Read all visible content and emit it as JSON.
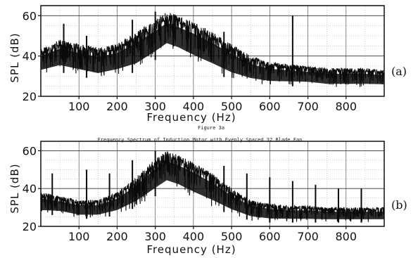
{
  "figure_caption": "Figure 3a",
  "figure_subcaption": "Frequency Spectrum of Induction Motor with Evenly Spaced 32 Blade Fan",
  "chart_data": [
    {
      "type": "line",
      "panel_label": "(a)",
      "xlabel": "Frequency (Hz)",
      "ylabel": "SPL (dB)",
      "xlim": [
        0,
        900
      ],
      "ylim": [
        20,
        65
      ],
      "x_ticks": [
        "100",
        "200",
        "300",
        "400",
        "500",
        "600",
        "700",
        "800"
      ],
      "y_ticks": [
        "20",
        "40",
        "60"
      ],
      "grid": true,
      "color": "#0a0a0a",
      "envelope": {
        "x": [
          0,
          50,
          100,
          150,
          200,
          250,
          300,
          330,
          360,
          400,
          450,
          500,
          550,
          600,
          650,
          700,
          750,
          800,
          850,
          900
        ],
        "upper": [
          44,
          48,
          46,
          44,
          46,
          52,
          58,
          62,
          60,
          57,
          52,
          46,
          40,
          37,
          36,
          35,
          34,
          34,
          34,
          33
        ],
        "lower": [
          30,
          32,
          30,
          28,
          30,
          32,
          38,
          42,
          40,
          36,
          32,
          28,
          26,
          25,
          25,
          25,
          24,
          24,
          24,
          24
        ]
      },
      "peaks": [
        {
          "x": 60,
          "y": 56
        },
        {
          "x": 120,
          "y": 50
        },
        {
          "x": 240,
          "y": 58
        },
        {
          "x": 300,
          "y": 62
        },
        {
          "x": 480,
          "y": 52
        },
        {
          "x": 660,
          "y": 60
        }
      ]
    },
    {
      "type": "line",
      "panel_label": "(b)",
      "xlabel": "Frequency (Hz)",
      "ylabel": "SPL (dB)",
      "xlim": [
        0,
        900
      ],
      "ylim": [
        20,
        65
      ],
      "x_ticks": [
        "100",
        "200",
        "300",
        "400",
        "500",
        "600",
        "700",
        "800"
      ],
      "y_ticks": [
        "20",
        "40",
        "60"
      ],
      "grid": true,
      "color": "#0a0a0a",
      "envelope": {
        "x": [
          0,
          50,
          100,
          150,
          200,
          250,
          300,
          330,
          360,
          400,
          450,
          500,
          550,
          600,
          650,
          700,
          750,
          800,
          850,
          900
        ],
        "upper": [
          38,
          36,
          34,
          34,
          38,
          46,
          56,
          60,
          58,
          54,
          48,
          40,
          34,
          32,
          31,
          31,
          30,
          30,
          30,
          30
        ],
        "lower": [
          26,
          26,
          24,
          24,
          26,
          30,
          36,
          40,
          38,
          34,
          30,
          26,
          23,
          22,
          22,
          22,
          22,
          22,
          22,
          22
        ]
      },
      "peaks": [
        {
          "x": 30,
          "y": 48
        },
        {
          "x": 120,
          "y": 50
        },
        {
          "x": 180,
          "y": 48
        },
        {
          "x": 240,
          "y": 55
        },
        {
          "x": 300,
          "y": 60
        },
        {
          "x": 480,
          "y": 52
        },
        {
          "x": 540,
          "y": 48
        },
        {
          "x": 600,
          "y": 46
        },
        {
          "x": 660,
          "y": 44
        },
        {
          "x": 720,
          "y": 42
        },
        {
          "x": 780,
          "y": 40
        },
        {
          "x": 840,
          "y": 40
        }
      ]
    }
  ]
}
